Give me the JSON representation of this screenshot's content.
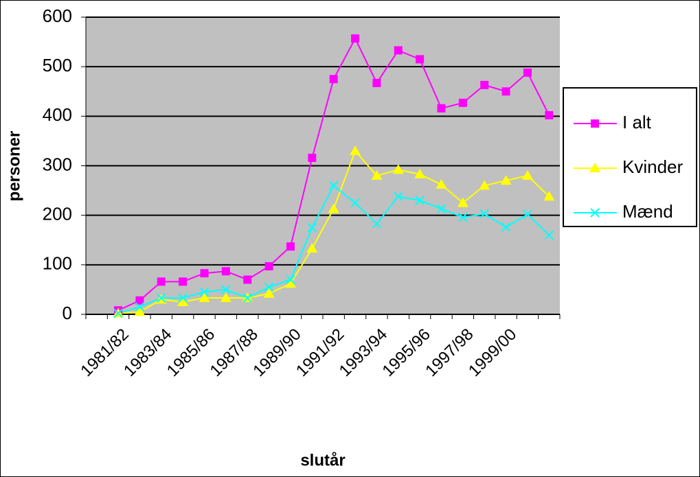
{
  "chart_data": {
    "type": "line",
    "x_label": "slutår",
    "y_label": "personer",
    "categories": [
      null,
      "1981/82",
      null,
      "1983/84",
      null,
      "1985/86",
      null,
      "1987/88",
      null,
      "1989/90",
      null,
      "1991/92",
      null,
      "1993/94",
      null,
      "1995/96",
      null,
      "1997/98",
      null,
      "1999/00",
      null,
      null
    ],
    "series": [
      {
        "name": "I alt",
        "color": "#ff00ff",
        "marker": "square",
        "values": [
          null,
          8,
          28,
          66,
          66,
          83,
          87,
          70,
          97,
          137,
          316,
          475,
          557,
          467,
          533,
          515,
          416,
          427,
          463,
          450,
          488,
          402
        ]
      },
      {
        "name": "Kvinder",
        "color": "#ffff00",
        "marker": "triangle",
        "values": [
          null,
          2,
          5,
          30,
          25,
          33,
          33,
          33,
          42,
          62,
          133,
          213,
          330,
          280,
          292,
          283,
          262,
          225,
          260,
          270,
          280,
          238
        ]
      },
      {
        "name": "Mænd",
        "color": "#00ffff",
        "marker": "x",
        "values": [
          null,
          2,
          15,
          33,
          33,
          45,
          50,
          33,
          55,
          70,
          175,
          260,
          225,
          183,
          238,
          230,
          213,
          196,
          203,
          176,
          202,
          160
        ]
      }
    ],
    "ylim": [
      0,
      600
    ],
    "yticks": [
      0,
      100,
      200,
      300,
      400,
      500,
      600
    ],
    "grid": true,
    "legend": "right",
    "plot_background": "#c0c0c0"
  }
}
